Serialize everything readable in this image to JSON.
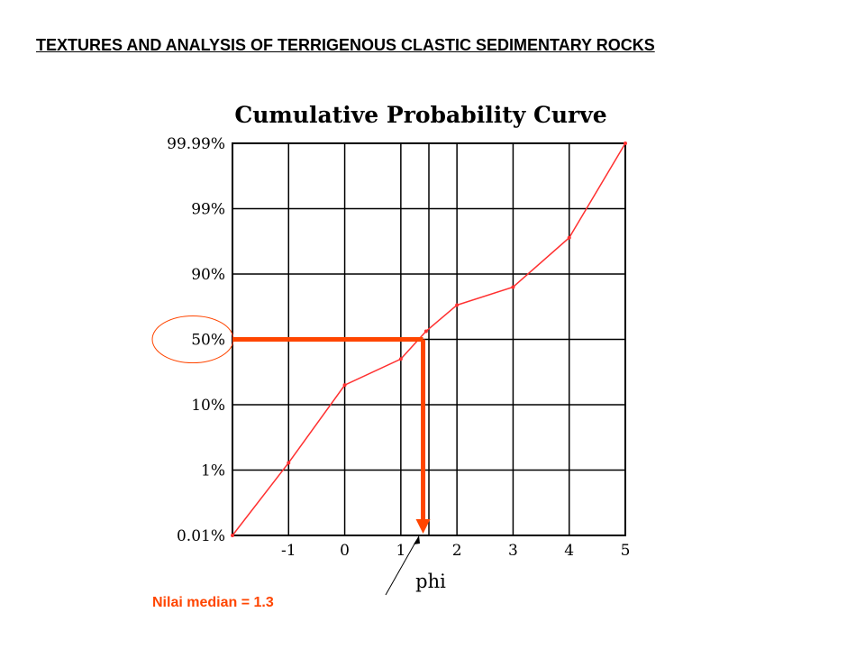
{
  "slide": {
    "title": "TEXTURES AND ANALYSIS OF TERRIGENOUS CLASTIC SEDIMENTARY ROCKS"
  },
  "chart_data": {
    "type": "line",
    "title": "Cumulative Probability Curve",
    "xlabel": "phi",
    "ylabel": "",
    "x_tick_labels": [
      "-1",
      "0",
      "1",
      "2",
      "3",
      "4",
      "5"
    ],
    "x_ticks": [
      -1,
      0,
      1,
      2,
      3,
      4,
      5
    ],
    "y_tick_labels": [
      "0.01%",
      "1%",
      "10%",
      "50%",
      "90%",
      "99%",
      "99.99%"
    ],
    "y_ticks": [
      0.01,
      1,
      10,
      50,
      90,
      99,
      99.99
    ],
    "xlim": [
      -2,
      5
    ],
    "y_scale": "probability",
    "grid": true,
    "series": [
      {
        "color": "#ff3030",
        "x": [
          -2,
          -1,
          0,
          1,
          1.45,
          2,
          3,
          4,
          5
        ],
        "y": [
          0.01,
          2,
          22,
          38,
          55,
          71,
          82,
          95,
          99.99
        ]
      }
    ],
    "median": {
      "x": 1.3,
      "y": 50,
      "color": "#ff4500"
    },
    "annotation": "Nilai  median = 1.3"
  }
}
